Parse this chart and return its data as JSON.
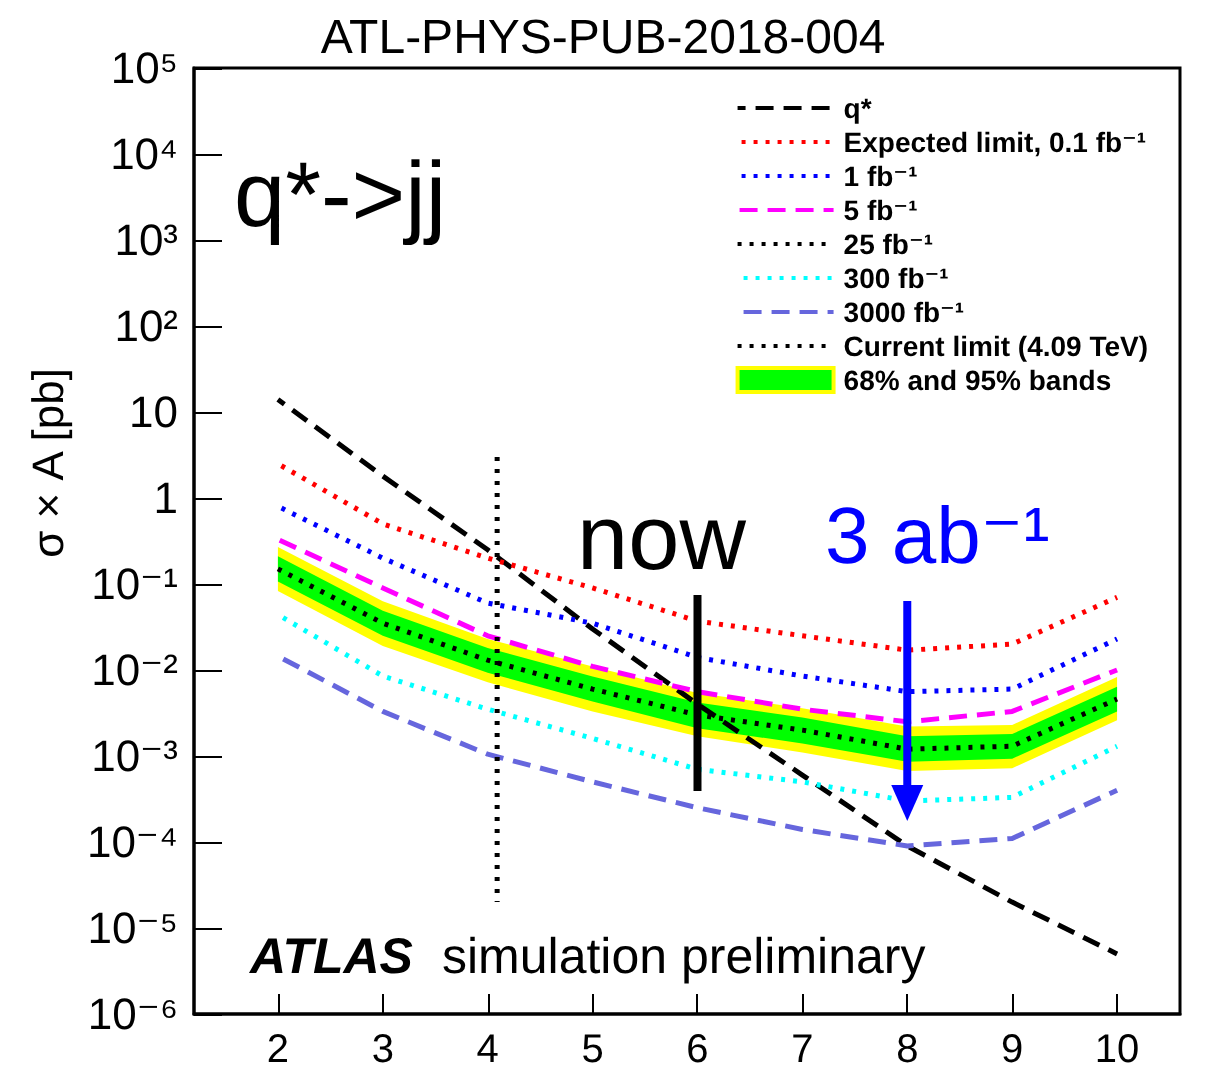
{
  "chart_data": {
    "type": "line",
    "title": "ATL-PHYS-PUB-2018-004",
    "ylabel": "σ × A [pb]",
    "x": [
      2,
      3,
      4,
      5,
      6,
      7,
      8,
      9,
      10
    ],
    "xlim": [
      1.2,
      10.6
    ],
    "xticks": [
      2,
      3,
      4,
      5,
      6,
      7,
      8,
      9,
      10
    ],
    "ylim": [
      1e-06,
      100000
    ],
    "yticks": [
      {
        "value": 1e-06,
        "label": "10⁻⁶"
      },
      {
        "value": 1e-05,
        "label": "10⁻⁵"
      },
      {
        "value": 0.0001,
        "label": "10⁻⁴"
      },
      {
        "value": 0.001,
        "label": "10⁻³"
      },
      {
        "value": 0.01,
        "label": "10⁻²"
      },
      {
        "value": 0.1,
        "label": "10⁻¹"
      },
      1,
      10,
      {
        "value": 100,
        "label": "10²"
      },
      {
        "value": 1000,
        "label": "10³"
      },
      {
        "value": 10000,
        "label": "10⁴"
      },
      {
        "value": 100000,
        "label": "10⁵"
      }
    ],
    "log": "y",
    "grid": false,
    "legend": "top right",
    "marker": "none",
    "annotations": [
      "q*->jj",
      "ATLAS",
      "simulation preliminary",
      {
        "text": "now",
        "x": 6,
        "y": 0.003
      },
      {
        "text": "3 ab⁻¹",
        "x": 8,
        "y": 0.0003
      }
    ],
    "series": [
      {
        "name": "q*",
        "color": "#000000",
        "line_style": "dashed",
        "values": [
          14,
          1.8,
          0.25,
          0.03,
          0.004,
          0.0006,
          9e-05,
          2e-05,
          5e-06
        ]
      },
      {
        "name": "Expected limit, 0.1 fb⁻¹",
        "color": "#ff0000",
        "line_style": "dotted",
        "values": [
          2.5,
          0.5,
          0.2,
          0.09,
          0.037,
          0.025,
          0.017,
          0.02,
          0.07
        ]
      },
      {
        "name": "1 fb⁻¹",
        "color": "#0000ff",
        "line_style": "dotted",
        "values": [
          0.8,
          0.2,
          0.06,
          0.035,
          0.014,
          0.0085,
          0.0056,
          0.006,
          0.023
        ]
      },
      {
        "name": "5 fb⁻¹",
        "color": "#ff00ff",
        "line_style": "dashed",
        "values": [
          0.33,
          0.09,
          0.025,
          0.011,
          0.0056,
          0.0035,
          0.0025,
          0.0033,
          0.01
        ]
      },
      {
        "name": "25 fb⁻¹",
        "color": "#000000",
        "line_style": "dotted",
        "values": [
          0.15,
          0.035,
          0.013,
          0.006,
          0.003,
          0.002,
          0.0012,
          0.0013,
          0.0046
        ]
      },
      {
        "name": "300 fb⁻¹",
        "color": "#00ffff",
        "line_style": "dotted",
        "values": [
          0.044,
          0.0085,
          0.0035,
          0.0016,
          0.0007,
          0.0005,
          0.0003,
          0.00033,
          0.0013
        ]
      },
      {
        "name": "3000 fb⁻¹",
        "color": "#6666dd",
        "line_style": "dashed",
        "values": [
          0.0145,
          0.0033,
          0.00105,
          0.0005,
          0.00025,
          0.00014,
          9e-05,
          0.00011,
          0.0004
        ]
      },
      {
        "name": "Current limit (4.09 TeV)",
        "color": "#000000",
        "line_style": "dotted",
        "x": [
          4.09,
          4.09
        ],
        "values": [
          3,
          2e-05
        ]
      },
      {
        "name": "68% and 95% bands",
        "color": "#00ff00",
        "values": [
          null,
          null,
          null,
          null,
          null,
          null,
          null,
          null,
          null
        ],
        "upper": [
          0.21,
          0.049,
          0.018,
          0.0084,
          0.0042,
          0.0028,
          0.0017,
          0.0018,
          0.0064
        ],
        "lower": [
          0.107,
          0.025,
          0.0093,
          0.0043,
          0.0021,
          0.0014,
          0.00086,
          0.00093,
          0.0033
        ]
      },
      {
        "color": "#ffff00",
        "values": [
          null,
          null,
          null,
          null,
          null,
          null,
          null,
          null,
          null
        ],
        "upper": [
          0.27,
          0.063,
          0.023,
          0.011,
          0.0054,
          0.0036,
          0.0022,
          0.0023,
          0.0083
        ],
        "lower": [
          0.083,
          0.019,
          0.0072,
          0.0033,
          0.0017,
          0.0011,
          0.00067,
          0.00072,
          0.0026
        ]
      }
    ]
  }
}
